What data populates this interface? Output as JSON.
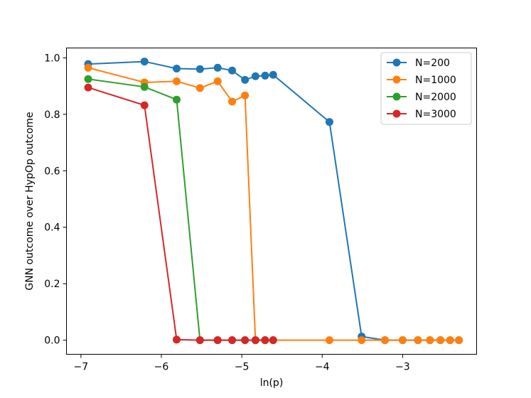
{
  "chart_data": {
    "type": "line",
    "title": "",
    "xlabel": "ln(p)",
    "ylabel": "GNN outcome over HypOp outcome",
    "xlim": [
      -7.18,
      -2.08
    ],
    "ylim": [
      -0.05,
      1.035
    ],
    "xticks": [
      -7,
      -6,
      -5,
      -4,
      -3
    ],
    "xtick_labels": [
      "−7",
      "−6",
      "−5",
      "−4",
      "−3"
    ],
    "yticks": [
      0.0,
      0.2,
      0.4,
      0.6,
      0.8,
      1.0
    ],
    "ytick_labels": [
      "0.0",
      "0.2",
      "0.4",
      "0.6",
      "0.8",
      "1.0"
    ],
    "grid": false,
    "legend_position": "top-right",
    "series": [
      {
        "name": "N=200",
        "color": "#1f77b4",
        "x": [
          -6.91,
          -6.21,
          -5.81,
          -5.52,
          -5.3,
          -5.12,
          -4.96,
          -4.83,
          -4.71,
          -4.61,
          -3.91,
          -3.51,
          -3.22,
          -3.0,
          -2.81,
          -2.66,
          -2.53,
          -2.41,
          -2.3
        ],
        "y": [
          0.978,
          0.987,
          0.962,
          0.96,
          0.965,
          0.955,
          0.922,
          0.935,
          0.937,
          0.94,
          0.773,
          0.013,
          0.0,
          0.0,
          0.0,
          0.0,
          0.0,
          0.0,
          0.0
        ]
      },
      {
        "name": "N=1000",
        "color": "#ff7f0e",
        "x": [
          -6.91,
          -6.21,
          -5.81,
          -5.52,
          -5.3,
          -5.12,
          -4.96,
          -4.83,
          -4.71,
          -4.61,
          -3.91,
          -3.51,
          -3.22,
          -3.0,
          -2.81,
          -2.66,
          -2.53,
          -2.41,
          -2.3
        ],
        "y": [
          0.965,
          0.913,
          0.917,
          0.893,
          0.917,
          0.845,
          0.867,
          0.0,
          0.0,
          0.0,
          0.0,
          0.0,
          0.0,
          0.0,
          0.0,
          0.0,
          0.0,
          0.0,
          0.0
        ]
      },
      {
        "name": "N=2000",
        "color": "#2ca02c",
        "x": [
          -6.91,
          -6.21,
          -5.81,
          -5.52,
          -5.3,
          -5.12,
          -4.96,
          -4.83,
          -4.71,
          -4.61
        ],
        "y": [
          0.925,
          0.897,
          0.852,
          0.0,
          0.0,
          0.0,
          0.0,
          0.0,
          0.0,
          0.0
        ]
      },
      {
        "name": "N=3000",
        "color": "#d62728",
        "x": [
          -6.91,
          -6.21,
          -5.81,
          -5.52,
          -5.3,
          -5.12,
          -4.96,
          -4.83,
          -4.71,
          -4.61
        ],
        "y": [
          0.895,
          0.832,
          0.002,
          0.0,
          0.0,
          0.0,
          0.0,
          0.0,
          0.0,
          0.0
        ]
      }
    ]
  }
}
